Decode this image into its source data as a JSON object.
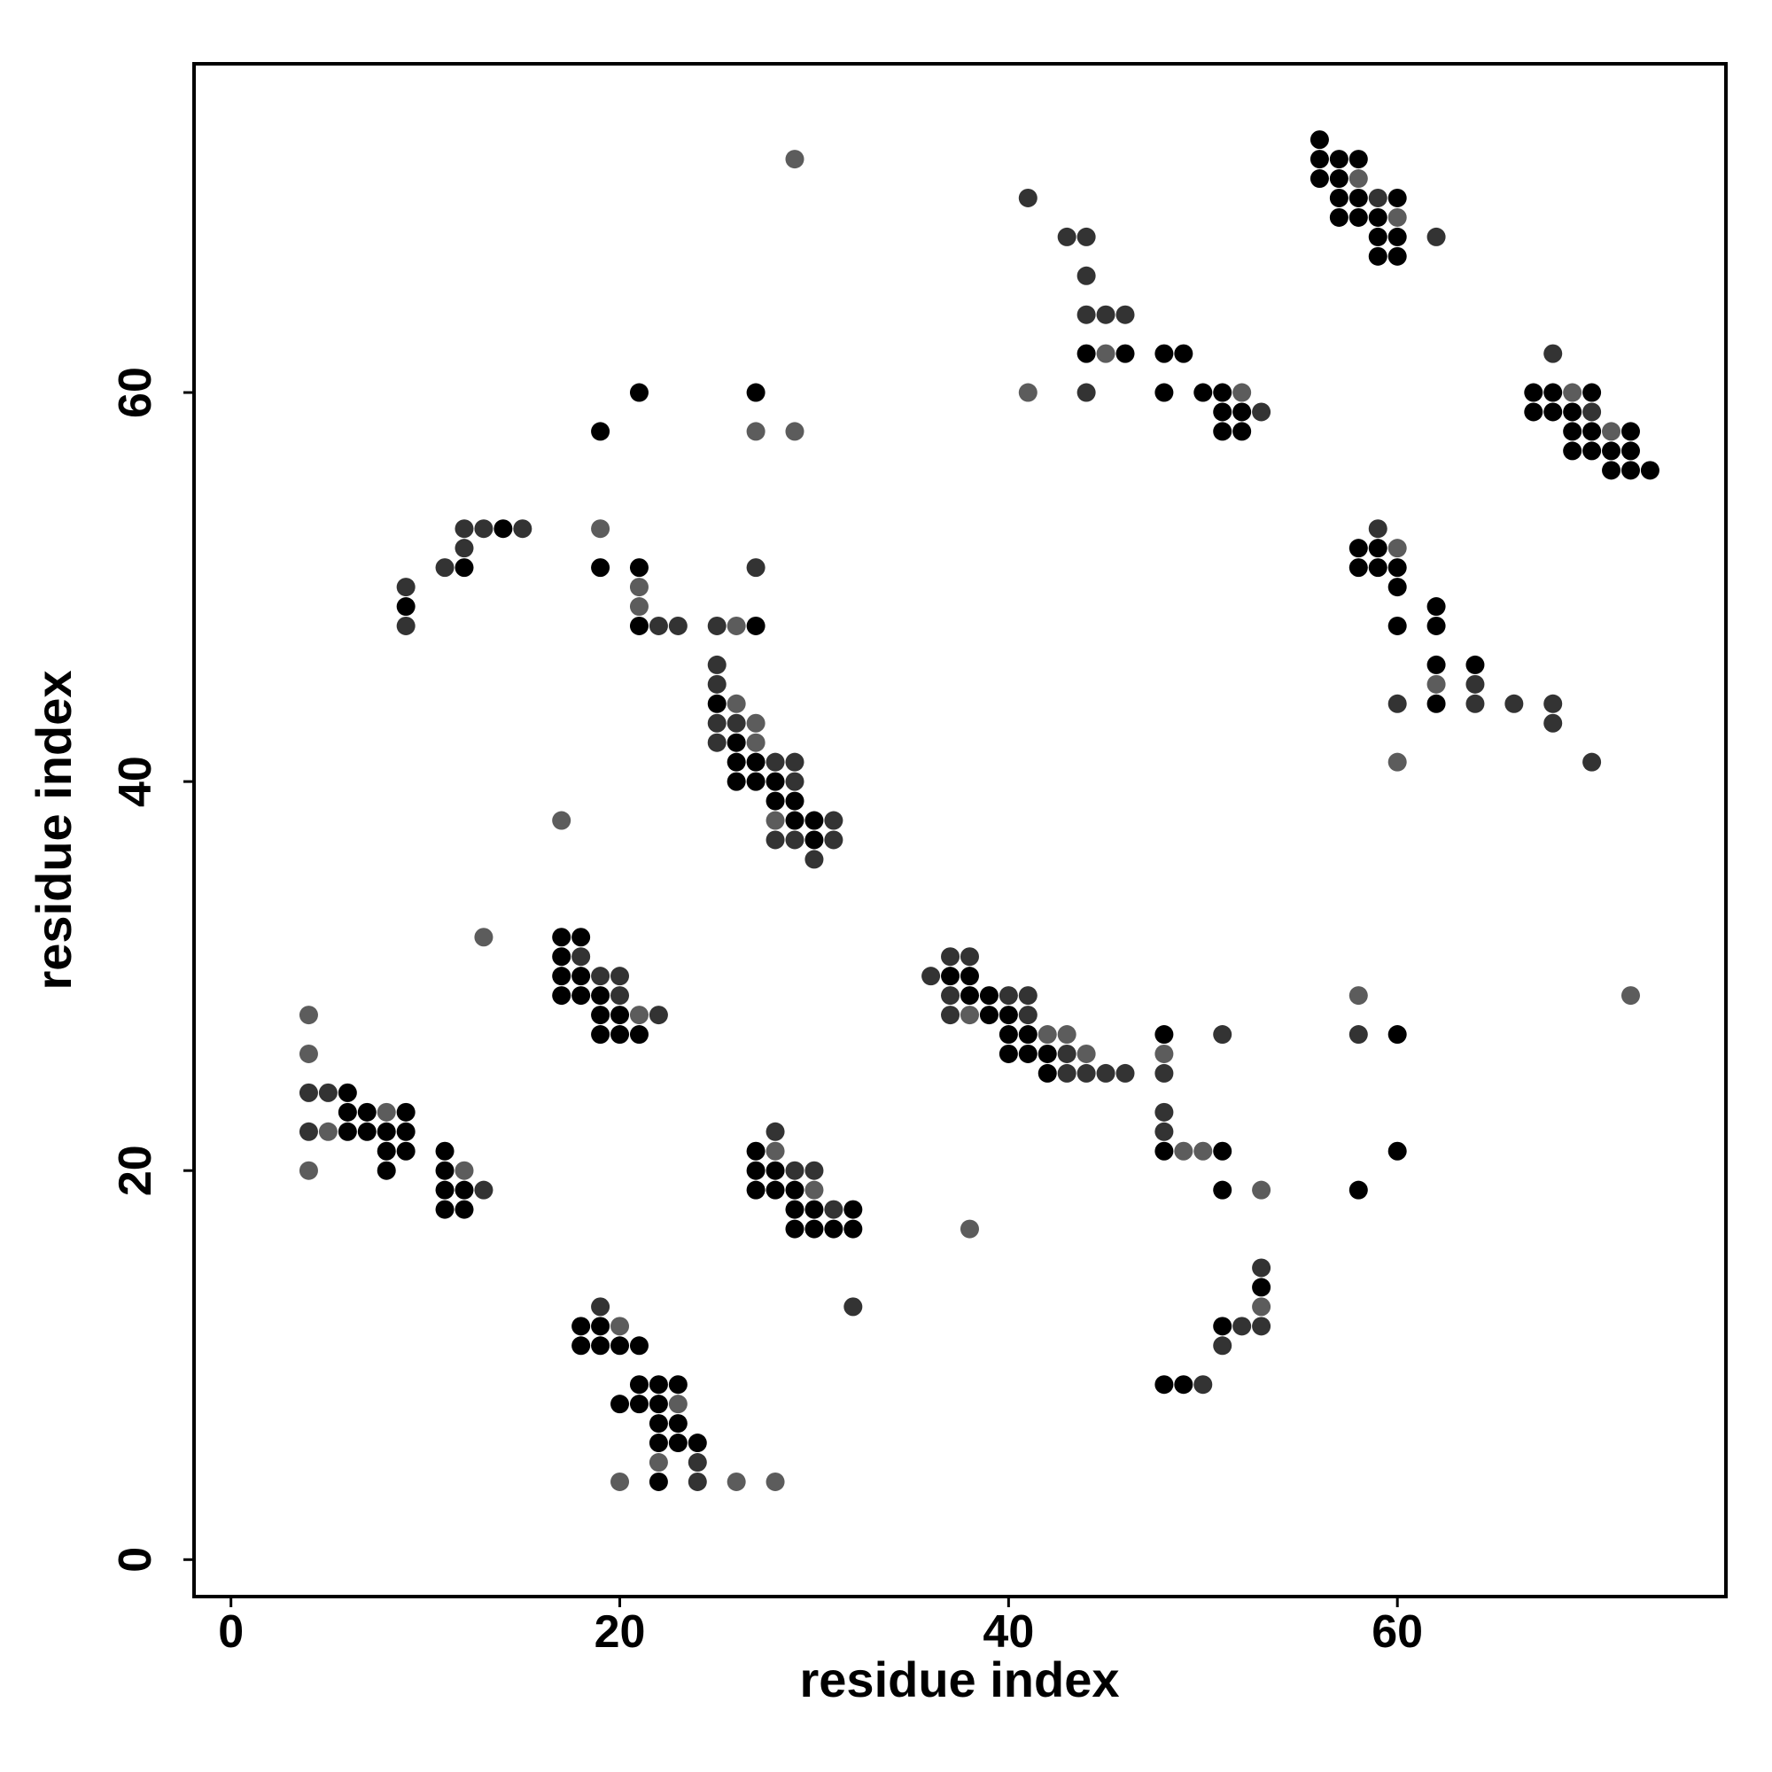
{
  "chart_data": {
    "type": "scatter",
    "x_label": "residue index",
    "y_label": "residue index",
    "xlim": [
      -1.9,
      76.9
    ],
    "ylim": [
      -1.9,
      76.9
    ],
    "xticks": [
      0,
      20,
      40,
      60
    ],
    "yticks": [
      0,
      20,
      40,
      60
    ],
    "grid": false,
    "series": [
      {
        "color": "#000000",
        "x": [
          56,
          56,
          57,
          58,
          56,
          57,
          57,
          58,
          60,
          57,
          58,
          59,
          59,
          60,
          59,
          60,
          44,
          46,
          48,
          49,
          48,
          50,
          51,
          51,
          52,
          51,
          52,
          67,
          68,
          70,
          67,
          68,
          69,
          69,
          70,
          72,
          69,
          70,
          71,
          72,
          71,
          72,
          73,
          58,
          59,
          58,
          59,
          60,
          60,
          62,
          60,
          62,
          62,
          64,
          62,
          9,
          12,
          14,
          19,
          21,
          21,
          19,
          21,
          27,
          27,
          25,
          26,
          26,
          27,
          26,
          27,
          28,
          28,
          29,
          29,
          30,
          30,
          6,
          6,
          7,
          9,
          6,
          7,
          8,
          9,
          8,
          9,
          11,
          8,
          11,
          11,
          12,
          11,
          12,
          17,
          18,
          17,
          17,
          18,
          17,
          18,
          19,
          19,
          20,
          19,
          20,
          21,
          27,
          27,
          28,
          27,
          28,
          29,
          29,
          30,
          32,
          29,
          30,
          31,
          32,
          18,
          19,
          18,
          19,
          20,
          21,
          21,
          22,
          23,
          20,
          21,
          22,
          22,
          23,
          22,
          23,
          24,
          22,
          37,
          38,
          38,
          39,
          39,
          40,
          40,
          41,
          40,
          41,
          42,
          42,
          48,
          48,
          51,
          51,
          53,
          51,
          48,
          49,
          60,
          60,
          58
        ],
        "y": [
          73,
          72,
          72,
          72,
          71,
          71,
          70,
          70,
          70,
          69,
          69,
          69,
          68,
          68,
          67,
          67,
          62,
          62,
          62,
          62,
          60,
          60,
          60,
          59,
          59,
          58,
          58,
          60,
          60,
          60,
          59,
          59,
          59,
          58,
          58,
          58,
          57,
          57,
          57,
          57,
          56,
          56,
          56,
          52,
          52,
          51,
          51,
          51,
          50,
          49,
          48,
          48,
          46,
          46,
          44,
          49,
          51,
          53,
          51,
          51,
          48,
          58,
          60,
          60,
          48,
          44,
          42,
          41,
          41,
          40,
          40,
          40,
          39,
          39,
          38,
          38,
          37,
          24,
          23,
          23,
          23,
          22,
          22,
          22,
          22,
          21,
          21,
          21,
          20,
          20,
          19,
          19,
          18,
          18,
          32,
          32,
          31,
          30,
          30,
          29,
          29,
          29,
          28,
          28,
          27,
          27,
          27,
          21,
          20,
          20,
          19,
          19,
          19,
          18,
          18,
          18,
          17,
          17,
          17,
          17,
          12,
          12,
          11,
          11,
          11,
          11,
          9,
          9,
          9,
          8,
          8,
          8,
          7,
          7,
          6,
          6,
          6,
          4,
          30,
          30,
          29,
          29,
          28,
          28,
          27,
          27,
          26,
          26,
          26,
          25,
          27,
          21,
          21,
          19,
          14,
          12,
          9,
          9,
          27,
          21,
          19
        ]
      },
      {
        "color": "#333333",
        "x": [
          59,
          62,
          41,
          43,
          44,
          44,
          44,
          45,
          46,
          44,
          53,
          68,
          70,
          59,
          64,
          60,
          64,
          66,
          68,
          68,
          70,
          9,
          9,
          11,
          12,
          12,
          13,
          15,
          22,
          23,
          27,
          25,
          25,
          25,
          25,
          26,
          25,
          28,
          29,
          29,
          31,
          28,
          29,
          31,
          30,
          4,
          5,
          4,
          13,
          18,
          19,
          20,
          20,
          22,
          28,
          29,
          30,
          31,
          32,
          19,
          24,
          24,
          37,
          38,
          36,
          37,
          40,
          41,
          37,
          41,
          43,
          43,
          44,
          45,
          46,
          51,
          48,
          48,
          48,
          53,
          52,
          53,
          51,
          50,
          58
        ],
        "y": [
          70,
          68,
          70,
          68,
          68,
          66,
          64,
          64,
          64,
          60,
          59,
          62,
          59,
          53,
          45,
          44,
          44,
          44,
          44,
          43,
          41,
          50,
          48,
          51,
          52,
          53,
          53,
          53,
          48,
          48,
          51,
          48,
          46,
          45,
          43,
          43,
          42,
          41,
          41,
          40,
          38,
          37,
          37,
          37,
          36,
          24,
          24,
          22,
          19,
          31,
          30,
          30,
          29,
          28,
          22,
          20,
          20,
          18,
          13,
          13,
          5,
          4,
          31,
          31,
          30,
          29,
          29,
          29,
          28,
          28,
          26,
          25,
          25,
          25,
          25,
          27,
          25,
          23,
          22,
          15,
          12,
          12,
          11,
          9,
          27
        ]
      },
      {
        "color": "#5c5c5c",
        "x": [
          58,
          60,
          29,
          45,
          41,
          52,
          69,
          71,
          60,
          62,
          60,
          19,
          21,
          21,
          27,
          29,
          26,
          26,
          27,
          27,
          28,
          17,
          4,
          4,
          8,
          5,
          4,
          12,
          13,
          21,
          28,
          30,
          20,
          23,
          22,
          20,
          26,
          28,
          38,
          42,
          43,
          44,
          38,
          48,
          49,
          50,
          53,
          53,
          58,
          72
        ],
        "y": [
          71,
          69,
          72,
          62,
          60,
          60,
          60,
          58,
          52,
          45,
          41,
          53,
          50,
          49,
          58,
          58,
          48,
          44,
          43,
          42,
          38,
          38,
          28,
          26,
          23,
          22,
          20,
          20,
          32,
          28,
          21,
          19,
          12,
          8,
          5,
          4,
          4,
          4,
          28,
          27,
          27,
          26,
          17,
          26,
          21,
          21,
          19,
          13,
          29,
          29
        ]
      }
    ]
  }
}
